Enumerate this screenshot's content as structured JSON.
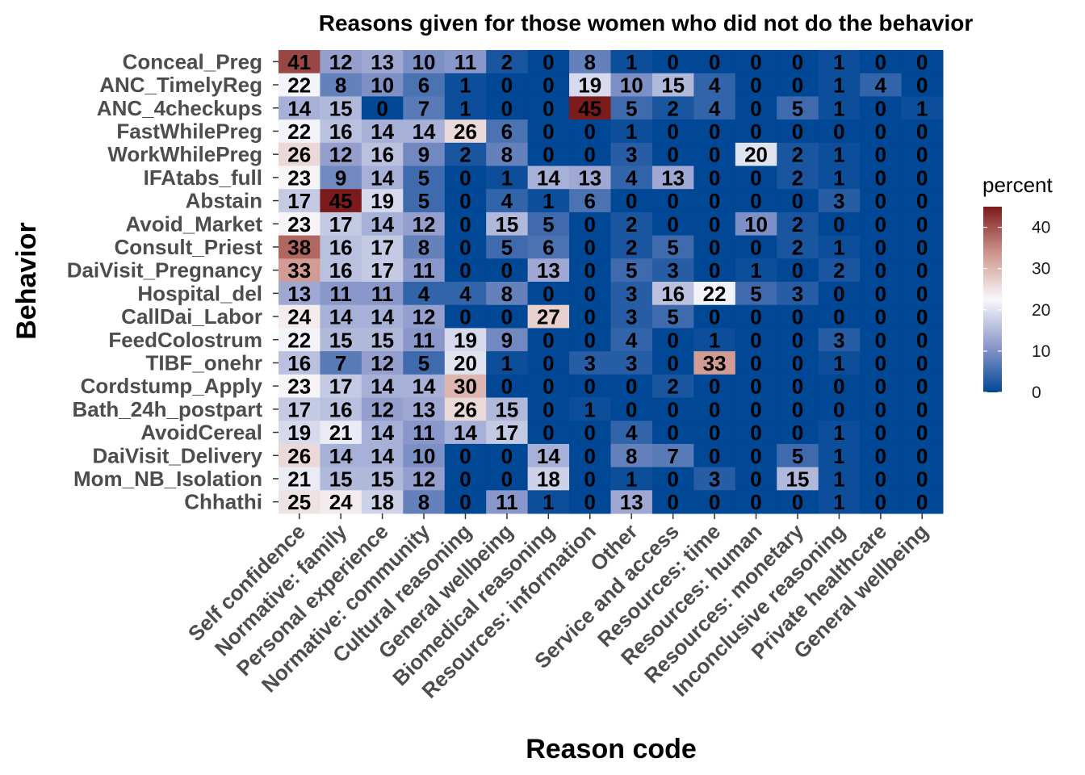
{
  "chart_data": {
    "type": "heatmap",
    "title": "Reasons given for those women who did not do the behavior",
    "xlabel": "Reason code",
    "ylabel": "Behavior",
    "legend": {
      "title": "percent",
      "placement": "right",
      "ticks": [
        0,
        10,
        20,
        30,
        40
      ],
      "range": [
        0,
        45
      ]
    },
    "colors": {
      "low": "#004796",
      "mid": "#f8f8fb",
      "high": "#7c1b1b"
    },
    "x_categories": [
      "Self confidence",
      "Normative: family",
      "Personal experience",
      "Normative: community",
      "Cultural reasoning",
      "General wellbeing",
      "Biomedical reasoning",
      "Resources: information",
      "Other",
      "Service and access",
      "Resources: time",
      "Resources: human",
      "Resources: monetary",
      "Inconclusive reasoning",
      "Private healthcare",
      "General wellbeing"
    ],
    "y_categories": [
      "Conceal_Preg",
      "ANC_TimelyReg",
      "ANC_4checkups",
      "FastWhilePreg",
      "WorkWhilePreg",
      "IFAtabs_full",
      "Abstain",
      "Avoid_Market",
      "Consult_Priest",
      "DaiVisit_Pregnancy",
      "Hospital_del",
      "CallDai_Labor",
      "FeedColostrum",
      "TIBF_onehr",
      "Cordstump_Apply",
      "Bath_24h_postpart",
      "AvoidCereal",
      "DaiVisit_Delivery",
      "Mom_NB_Isolation",
      "Chhathi"
    ],
    "values": [
      [
        41,
        12,
        13,
        10,
        11,
        2,
        0,
        8,
        1,
        0,
        0,
        0,
        0,
        1,
        0,
        0
      ],
      [
        22,
        8,
        10,
        6,
        1,
        0,
        0,
        19,
        10,
        15,
        4,
        0,
        0,
        1,
        4,
        0
      ],
      [
        14,
        15,
        0,
        7,
        1,
        0,
        0,
        45,
        5,
        2,
        4,
        0,
        5,
        1,
        0,
        1
      ],
      [
        22,
        16,
        14,
        14,
        26,
        6,
        0,
        0,
        1,
        0,
        0,
        0,
        0,
        0,
        0,
        0
      ],
      [
        26,
        12,
        16,
        9,
        2,
        8,
        0,
        0,
        3,
        0,
        0,
        20,
        2,
        1,
        0,
        0
      ],
      [
        23,
        9,
        14,
        5,
        0,
        1,
        14,
        13,
        4,
        13,
        0,
        0,
        2,
        1,
        0,
        0
      ],
      [
        17,
        45,
        19,
        5,
        0,
        4,
        1,
        6,
        0,
        0,
        0,
        0,
        0,
        3,
        0,
        0
      ],
      [
        23,
        17,
        14,
        12,
        0,
        15,
        5,
        0,
        2,
        0,
        0,
        10,
        2,
        0,
        0,
        0
      ],
      [
        38,
        16,
        17,
        8,
        0,
        5,
        6,
        0,
        2,
        5,
        0,
        0,
        2,
        1,
        0,
        0
      ],
      [
        33,
        16,
        17,
        11,
        0,
        0,
        13,
        0,
        5,
        3,
        0,
        1,
        0,
        2,
        0,
        0
      ],
      [
        13,
        11,
        11,
        4,
        4,
        8,
        0,
        0,
        3,
        16,
        22,
        5,
        3,
        0,
        0,
        0
      ],
      [
        24,
        14,
        14,
        12,
        0,
        0,
        27,
        0,
        3,
        5,
        0,
        0,
        0,
        0,
        0,
        0
      ],
      [
        22,
        15,
        15,
        11,
        19,
        9,
        0,
        0,
        4,
        0,
        1,
        0,
        0,
        3,
        0,
        0
      ],
      [
        16,
        7,
        12,
        5,
        20,
        1,
        0,
        3,
        3,
        0,
        33,
        0,
        0,
        1,
        0,
        0
      ],
      [
        23,
        17,
        14,
        14,
        30,
        0,
        0,
        0,
        0,
        2,
        0,
        0,
        0,
        0,
        0,
        0
      ],
      [
        17,
        16,
        12,
        13,
        26,
        15,
        0,
        1,
        0,
        0,
        0,
        0,
        0,
        0,
        0,
        0
      ],
      [
        19,
        21,
        14,
        11,
        14,
        17,
        0,
        0,
        4,
        0,
        0,
        0,
        0,
        1,
        0,
        0
      ],
      [
        26,
        14,
        14,
        10,
        0,
        0,
        14,
        0,
        8,
        7,
        0,
        0,
        5,
        1,
        0,
        0
      ],
      [
        21,
        15,
        15,
        12,
        0,
        0,
        18,
        0,
        1,
        0,
        3,
        0,
        15,
        1,
        0,
        0
      ],
      [
        25,
        24,
        18,
        8,
        0,
        11,
        1,
        0,
        13,
        0,
        0,
        0,
        0,
        1,
        0,
        0
      ]
    ]
  }
}
